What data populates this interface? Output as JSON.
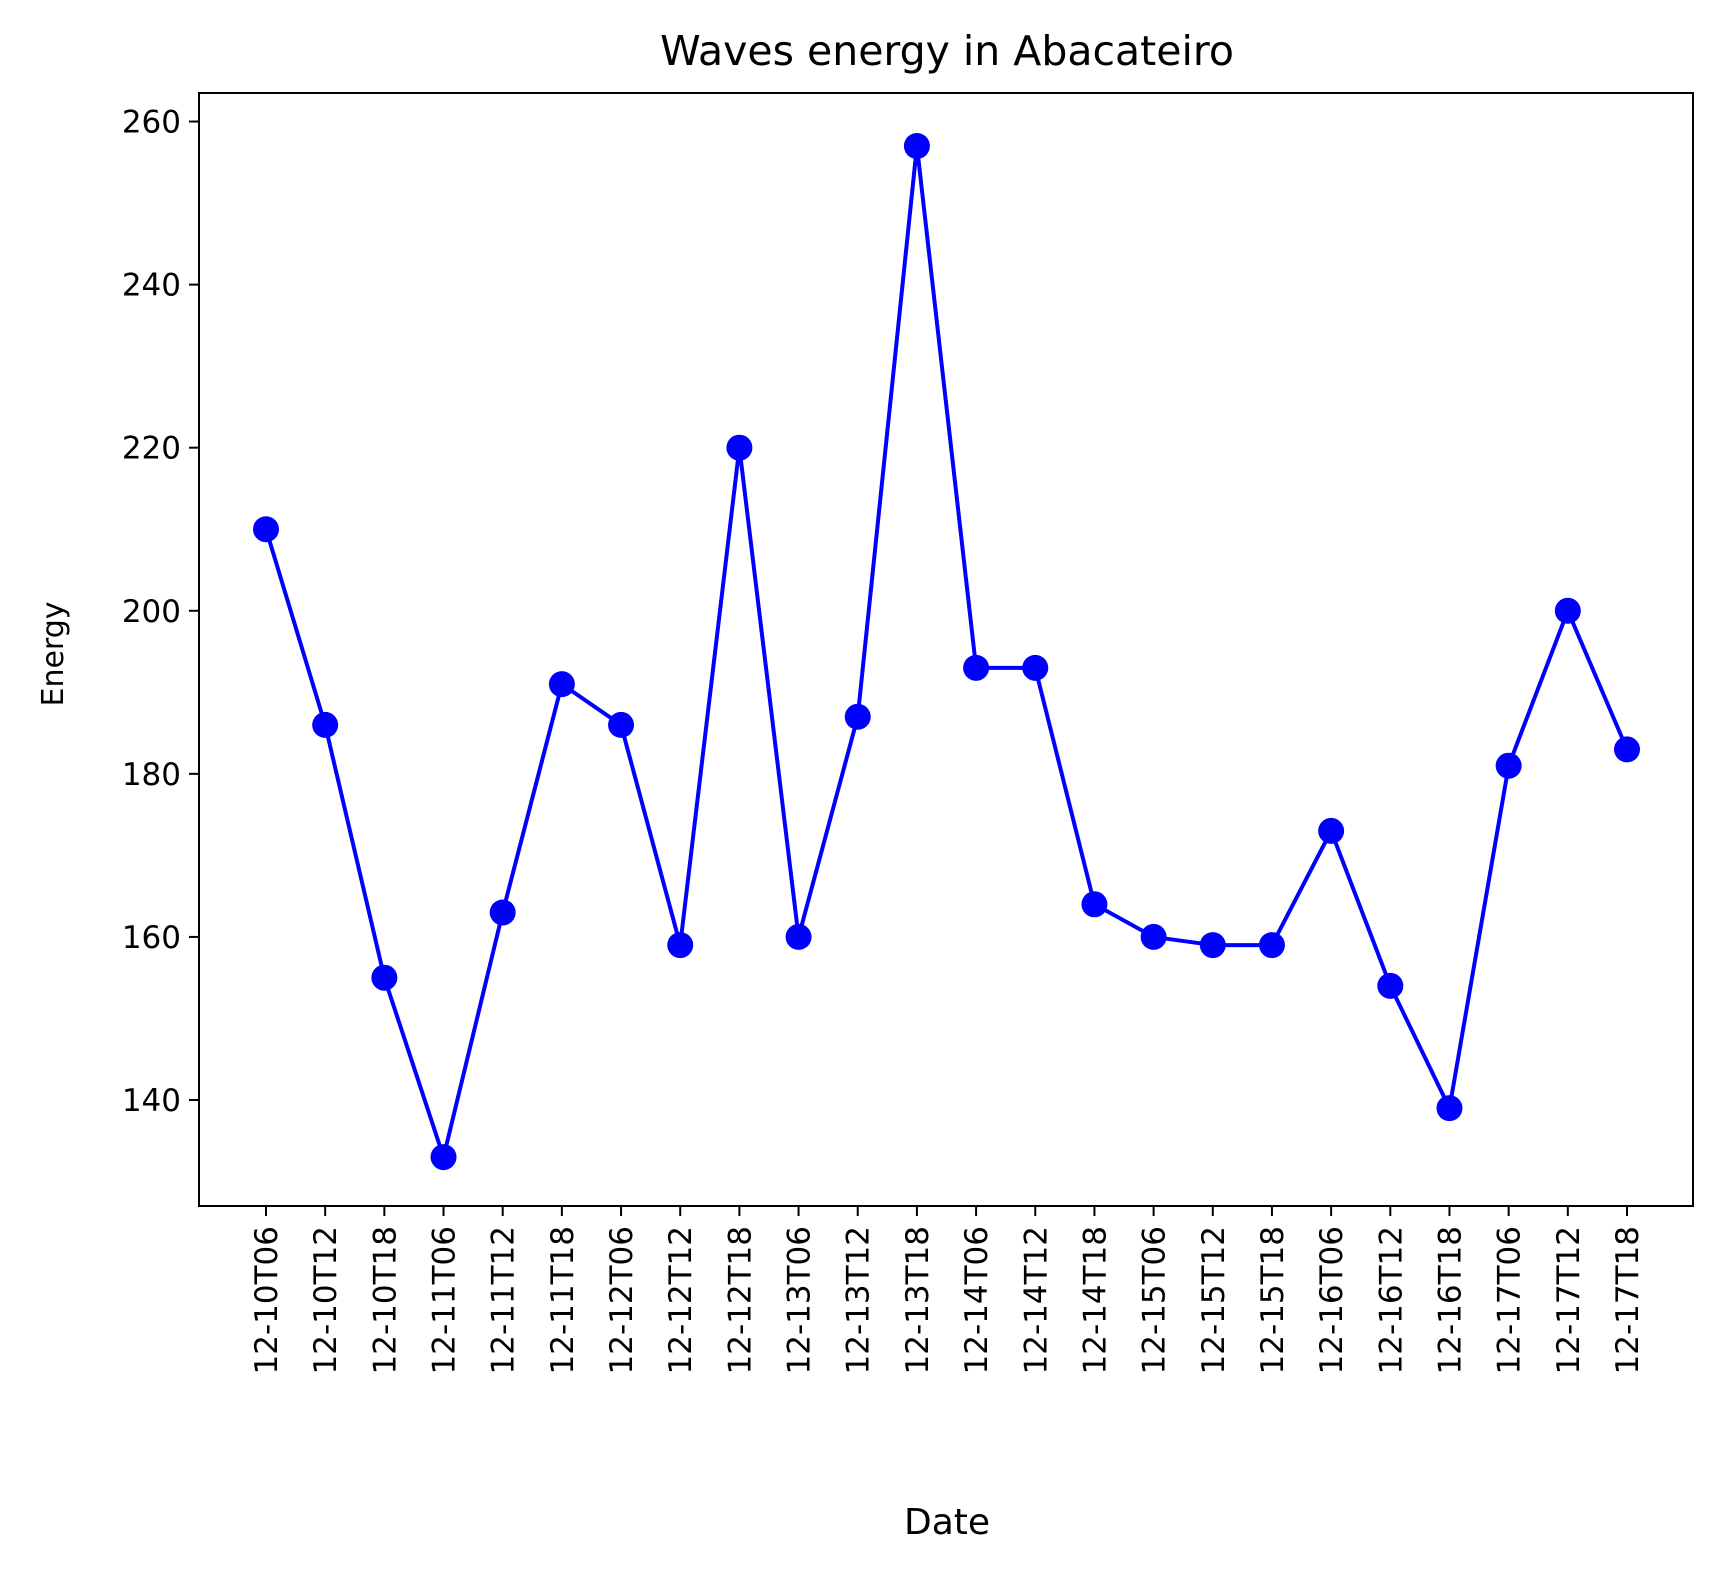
{
  "chart_data": {
    "type": "line",
    "title": "Waves energy in Abacateiro",
    "xlabel": "Date",
    "ylabel": "Energy",
    "ylim": [
      127,
      263.5
    ],
    "yticks": [
      140,
      160,
      180,
      200,
      220,
      240,
      260
    ],
    "grid": false,
    "legend": "none",
    "categories": [
      "12-10T06",
      "12-10T12",
      "12-10T18",
      "12-11T06",
      "12-11T12",
      "12-11T18",
      "12-12T06",
      "12-12T12",
      "12-12T18",
      "12-13T06",
      "12-13T12",
      "12-13T18",
      "12-14T06",
      "12-14T12",
      "12-14T18",
      "12-15T06",
      "12-15T12",
      "12-15T18",
      "12-16T06",
      "12-16T12",
      "12-16T18",
      "12-17T06",
      "12-17T12",
      "12-17T18"
    ],
    "series": [
      {
        "color": "#0000ff",
        "marker": "circle",
        "values": [
          210,
          186,
          155,
          133,
          163,
          191,
          186,
          159,
          220,
          160,
          187,
          257,
          193,
          193,
          164,
          160,
          159,
          159,
          173,
          154,
          139,
          181,
          200,
          183
        ]
      }
    ]
  }
}
